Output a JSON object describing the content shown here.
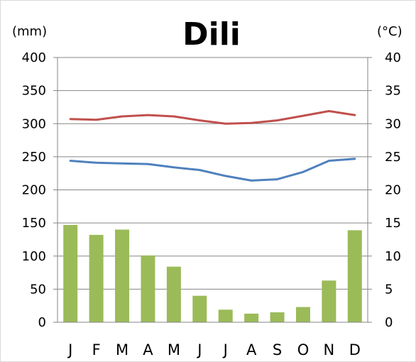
{
  "chart_data": {
    "type": "bar",
    "title": "Dili",
    "left_axis_unit": "(mm)",
    "right_axis_unit": "(°C)",
    "categories": [
      "J",
      "F",
      "M",
      "A",
      "M",
      "J",
      "J",
      "A",
      "S",
      "O",
      "N",
      "D"
    ],
    "ylim": [
      0,
      400
    ],
    "y2lim": [
      0,
      40
    ],
    "y_ticks": [
      "0",
      "50",
      "100",
      "150",
      "200",
      "250",
      "300",
      "350",
      "400"
    ],
    "y2_ticks": [
      "0",
      "5",
      "10",
      "15",
      "20",
      "25",
      "30",
      "35",
      "40"
    ],
    "grid": true,
    "series": [
      {
        "kind": "bar",
        "axis": "left",
        "color": "#9bbb59",
        "values": [
          147,
          132,
          140,
          101,
          84,
          40,
          19,
          13,
          15,
          23,
          63,
          139
        ]
      },
      {
        "kind": "line",
        "axis": "right",
        "color": "#c0504d",
        "values": [
          30.7,
          30.6,
          31.1,
          31.3,
          31.1,
          30.5,
          30.0,
          30.1,
          30.5,
          31.2,
          31.9,
          31.3
        ]
      },
      {
        "kind": "line",
        "axis": "right",
        "color": "#4f81bd",
        "values": [
          24.4,
          24.1,
          24.0,
          23.9,
          23.4,
          23.0,
          22.1,
          21.4,
          21.6,
          22.7,
          24.4,
          24.7
        ]
      }
    ]
  }
}
